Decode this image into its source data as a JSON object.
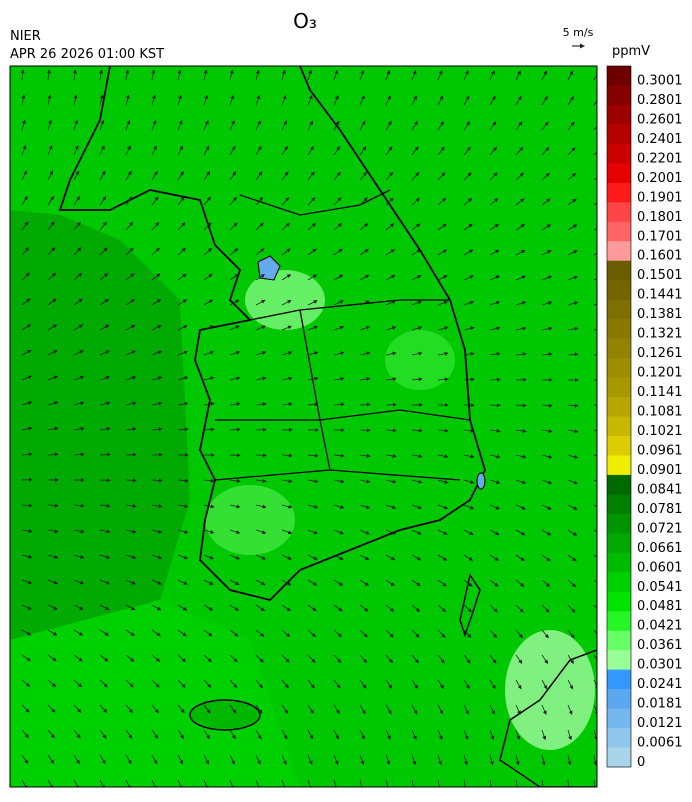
{
  "header": {
    "title": "O₃",
    "agency": "NIER",
    "timestamp": "APR 26 2026 01:00 KST"
  },
  "wind_scale": {
    "label": "5 m/s"
  },
  "colorbar": {
    "unit": "ppmV",
    "ticks": [
      0.3001,
      0.2801,
      0.2601,
      0.2401,
      0.2201,
      0.2001,
      0.1901,
      0.1801,
      0.1701,
      0.1601,
      0.1501,
      0.1441,
      0.1381,
      0.1321,
      0.1261,
      0.1201,
      0.1141,
      0.1081,
      0.1021,
      0.0961,
      0.0901,
      0.0841,
      0.0781,
      0.0721,
      0.0661,
      0.0601,
      0.0541,
      0.0481,
      0.0421,
      0.0361,
      0.0301,
      0.0241,
      0.0181,
      0.0121,
      0.0061,
      0
    ],
    "colors": [
      "#6e0000",
      "#850000",
      "#9c0000",
      "#b40000",
      "#cc0000",
      "#e60000",
      "#ff1a1a",
      "#ff4545",
      "#ff6363",
      "#ff9a9a",
      "#6b5c00",
      "#756500",
      "#7f6f00",
      "#897900",
      "#948300",
      "#9f8d00",
      "#aa9800",
      "#b8a600",
      "#c9b800",
      "#dccc00",
      "#f0ee00",
      "#006a00",
      "#007f00",
      "#009400",
      "#00a800",
      "#00bc00",
      "#00d000",
      "#00e400",
      "#26f526",
      "#66ff66",
      "#99ff99",
      "#3399ff",
      "#5aa8f0",
      "#75b8f0",
      "#8fc6ec",
      "#a8d4ec"
    ]
  }
}
